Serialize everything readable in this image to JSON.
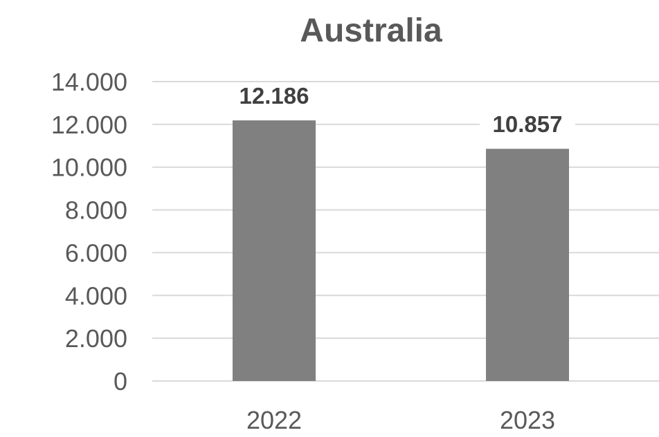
{
  "chart_data": {
    "type": "bar",
    "title": "Australia",
    "xlabel": "",
    "ylabel": "",
    "categories": [
      "2022",
      "2023"
    ],
    "values": [
      12186,
      10857
    ],
    "value_labels": [
      "12.186",
      "10.857"
    ],
    "ylim": [
      0,
      14000
    ],
    "yticks": [
      0,
      2000,
      4000,
      6000,
      8000,
      10000,
      12000,
      14000
    ],
    "ytick_labels": [
      "0",
      "2.000",
      "4.000",
      "6.000",
      "8.000",
      "10.000",
      "12.000",
      "14.000"
    ],
    "grid": true,
    "legend": "none",
    "bar_color": "#808080",
    "grid_color": "#d9d9d9",
    "text_color": "#595959"
  }
}
